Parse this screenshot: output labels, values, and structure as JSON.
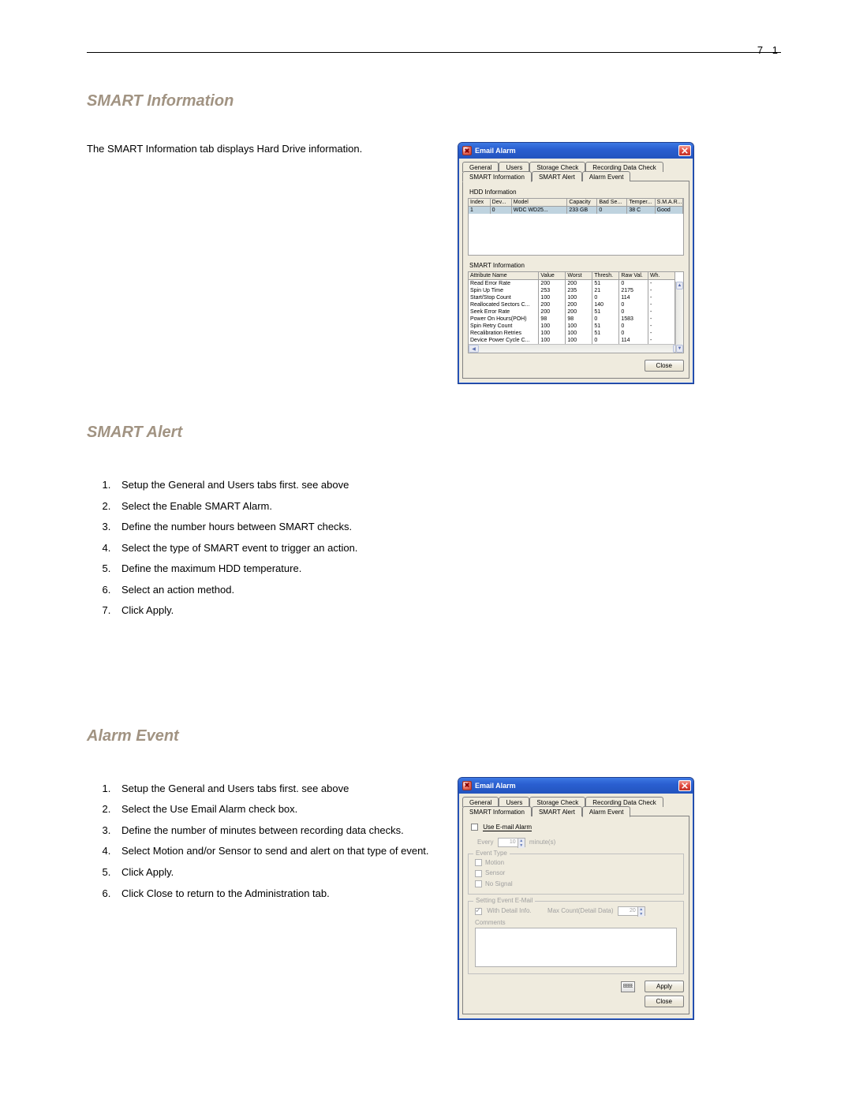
{
  "page_number": "7 1",
  "section_smart_info": {
    "heading": "SMART Information",
    "text": "The SMART Information tab displays Hard Drive information."
  },
  "section_smart_alert": {
    "heading": "SMART Alert",
    "steps": [
      "Setup the General and Users tabs first. see above",
      "Select the Enable SMART Alarm.",
      "Define the number hours between SMART checks.",
      "Select the type of SMART event to trigger an action.",
      "Define the maximum HDD temperature.",
      "Select an action method.",
      "Click Apply."
    ]
  },
  "section_alarm_event": {
    "heading": "Alarm Event",
    "steps": [
      "Setup the General and Users tabs first. see above",
      "Select the Use Email Alarm check box.",
      "Define the number of minutes between recording data checks.",
      "Select Motion and/or Sensor to send and alert on that type of event.",
      "Click Apply.",
      "Click Close to return to the Administration tab."
    ]
  },
  "dialog1": {
    "title": "Email Alarm",
    "tabs_top": [
      "General",
      "Users",
      "Storage Check",
      "Recording Data Check"
    ],
    "tabs_bottom": [
      "SMART Information",
      "SMART Alert",
      "Alarm Event"
    ],
    "active_tab": "SMART Information",
    "hdd_label": "HDD Information",
    "hdd_headers": [
      "Index",
      "Dev...",
      "Model",
      "Capacity",
      "Bad Se...",
      "Temper...",
      "S.M.A.R..."
    ],
    "hdd_row": [
      "1",
      "0",
      "WDC WD25...",
      "233 GB",
      "0",
      "38 C",
      "Good"
    ],
    "smart_label": "SMART Information",
    "smart_headers": [
      "Attribute Name",
      "Value",
      "Worst",
      "Thresh.",
      "Raw Val.",
      "Wh."
    ],
    "smart_rows": [
      [
        "Read Error Rate",
        "200",
        "200",
        "51",
        "0",
        "-"
      ],
      [
        "Spin Up Time",
        "253",
        "235",
        "21",
        "2175",
        "-"
      ],
      [
        "Start/Stop Count",
        "100",
        "100",
        "0",
        "114",
        "-"
      ],
      [
        "Reallocated Sectors C...",
        "200",
        "200",
        "140",
        "0",
        "-"
      ],
      [
        "Seek Error Rate",
        "200",
        "200",
        "51",
        "0",
        "-"
      ],
      [
        "Power On Hours(POH)",
        "98",
        "98",
        "0",
        "1583",
        "-"
      ],
      [
        "Spin Retry Count",
        "100",
        "100",
        "51",
        "0",
        "-"
      ],
      [
        "Recalibration Retries",
        "100",
        "100",
        "51",
        "0",
        "-"
      ],
      [
        "Device Power Cycle C...",
        "100",
        "100",
        "0",
        "114",
        "-"
      ]
    ],
    "close_btn": "Close"
  },
  "dialog2": {
    "title": "Email Alarm",
    "tabs_top": [
      "General",
      "Users",
      "Storage Check",
      "Recording Data Check"
    ],
    "tabs_bottom": [
      "SMART Information",
      "SMART Alert",
      "Alarm Event"
    ],
    "active_tab": "Alarm Event",
    "use_email_label": "Use E-mail Alarm",
    "every_label": "Every",
    "every_value": "10",
    "every_unit": "minute(s)",
    "event_type_legend": "Event Type",
    "event_types": [
      "Motion",
      "Sensor",
      "No Signal"
    ],
    "setting_legend": "Setting Event E-Mail",
    "with_detail_label": "With Detail Info.",
    "max_count_label": "Max Count(Detail Data)",
    "max_count_value": "20",
    "comments_label": "Comments",
    "apply_btn": "Apply",
    "close_btn": "Close"
  },
  "style": {
    "heading_color": "#a19382",
    "heading_fontsize_pt": 15,
    "body_fontsize_pt": 10,
    "titlebar_gradient": [
      "#3d79e3",
      "#2a5fd1",
      "#2354be"
    ],
    "close_btn_red": "#e04a3f",
    "dialog_bg": "#efebde",
    "selected_row_bg": "#bfd3df",
    "disabled_text_color": "#a0a0a0",
    "table_border_color": "#a0a0a0",
    "page_bg": "#ffffff",
    "dialog_font": "Tahoma",
    "body_font": "Arial",
    "hdd_col_widths_pct": [
      10,
      10,
      26,
      14,
      14,
      13,
      13
    ],
    "smart_col_widths_pct": [
      34,
      13,
      13,
      13,
      14,
      13
    ]
  }
}
